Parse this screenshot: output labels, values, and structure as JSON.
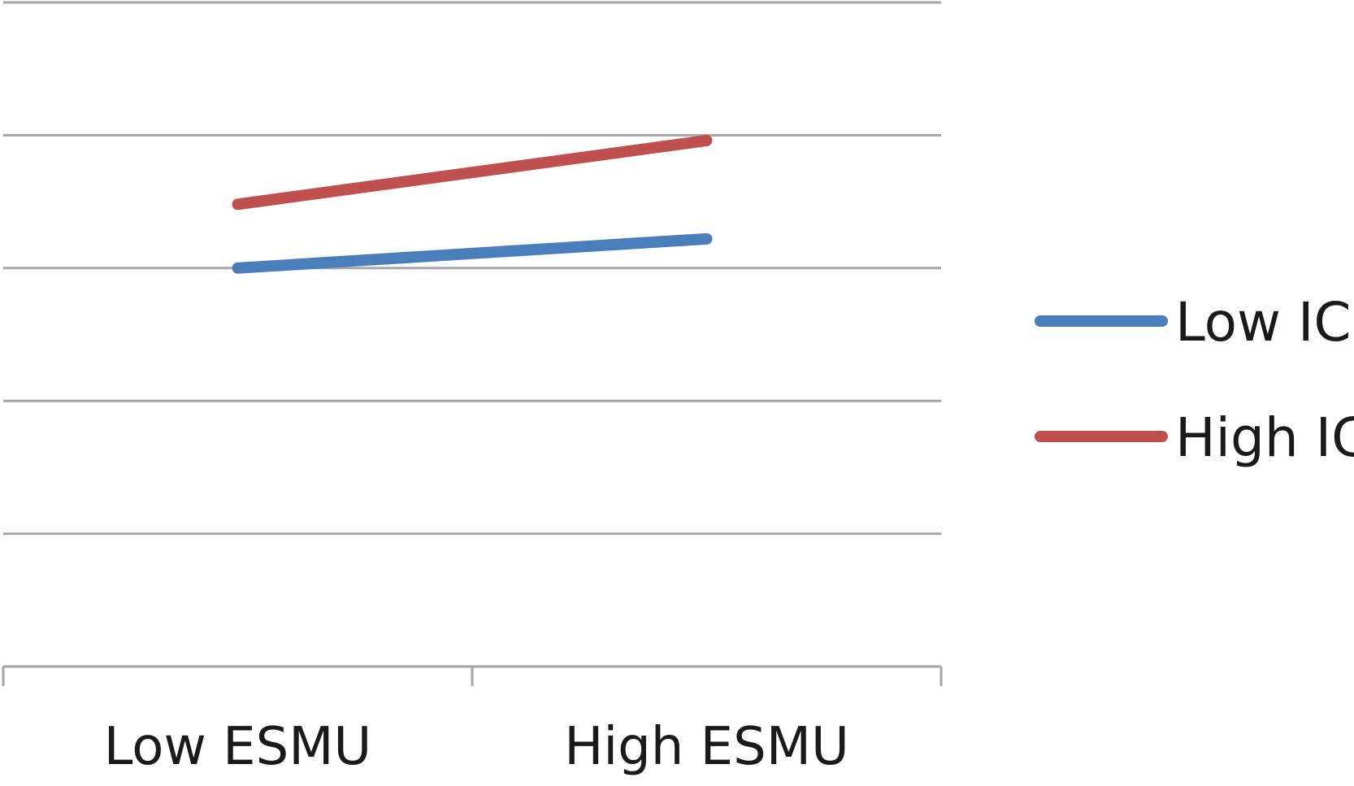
{
  "chart_data": {
    "type": "line",
    "categories": [
      "Low ESMU",
      "High ESMU"
    ],
    "series": [
      {
        "name": "Low IC",
        "values": [
          3.0,
          3.22
        ],
        "color": "#4a7ebb"
      },
      {
        "name": "High IC",
        "values": [
          3.48,
          3.96
        ],
        "color": "#c0504d"
      }
    ],
    "ylim": [
      0,
      5
    ],
    "grid": true,
    "legend": "right",
    "title": "",
    "xlabel": "",
    "ylabel": ""
  }
}
